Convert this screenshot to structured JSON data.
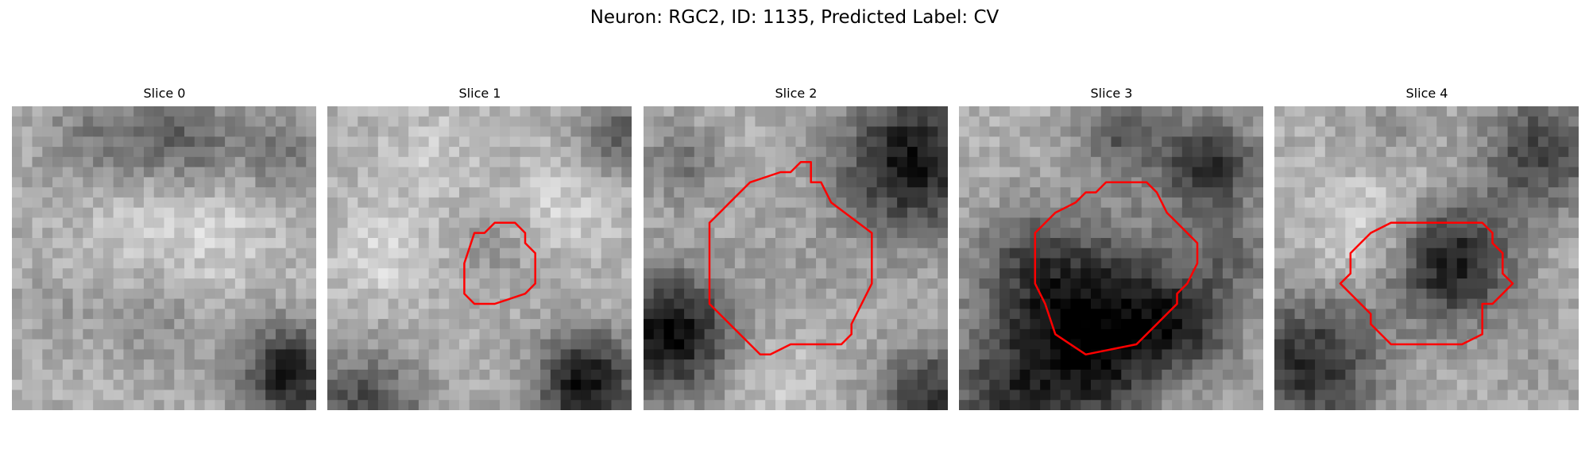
{
  "figure": {
    "title": "Neuron: RGC2, ID: 1135, Predicted Label: CV",
    "slices": [
      {
        "label": "Slice 0",
        "has_outline": false
      },
      {
        "label": "Slice 1",
        "has_outline": true
      },
      {
        "label": "Slice 2",
        "has_outline": true
      },
      {
        "label": "Slice 3",
        "has_outline": true
      },
      {
        "label": "Slice 4",
        "has_outline": true
      }
    ],
    "colormap": "gray",
    "outline_color": "#ff0000"
  }
}
